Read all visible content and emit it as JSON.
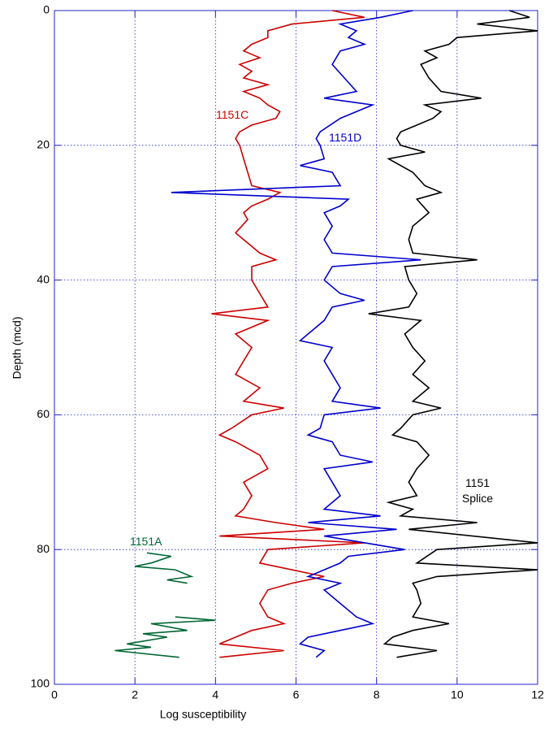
{
  "chart_data": {
    "type": "line",
    "x_label": "Log susceptibility",
    "y_label": "Depth (mcd)",
    "xlim": [
      0,
      12
    ],
    "xticks": [
      0,
      2,
      4,
      6,
      8,
      10,
      12
    ],
    "ylim": [
      0,
      100
    ],
    "yticks": [
      0,
      20,
      40,
      60,
      80,
      100
    ],
    "y_inverted": true,
    "grid": true,
    "series": [
      {
        "name": "1151C",
        "color": "#cc0000",
        "y": [
          0,
          1,
          2,
          3,
          4,
          5,
          6,
          7,
          8,
          9,
          10,
          11,
          12,
          13,
          14,
          15,
          16,
          17,
          18,
          19,
          20,
          22,
          24,
          26,
          27,
          28,
          29,
          30,
          31,
          33,
          34,
          35,
          36,
          37,
          38,
          40,
          42,
          44,
          45,
          46,
          48,
          50,
          52,
          54,
          56,
          58,
          59,
          60,
          62,
          63,
          64,
          66,
          68,
          70,
          72,
          74,
          75,
          76,
          77,
          78,
          79,
          80,
          82,
          84,
          85,
          86,
          88,
          90,
          91,
          92,
          93,
          94,
          95,
          96
        ],
        "x": [
          6.9,
          7.7,
          5.9,
          5.3,
          5.3,
          4.9,
          4.7,
          5.1,
          4.6,
          4.9,
          4.7,
          5.3,
          4.7,
          5.1,
          5.3,
          5.6,
          5.5,
          4.9,
          4.6,
          4.5,
          4.6,
          4.7,
          4.8,
          4.9,
          5.6,
          5.3,
          4.9,
          4.7,
          4.8,
          4.5,
          4.7,
          4.9,
          5.1,
          5.5,
          4.9,
          4.9,
          5.1,
          5.3,
          3.9,
          5.3,
          4.5,
          4.9,
          4.7,
          4.5,
          5.1,
          4.7,
          5.7,
          4.9,
          4.4,
          4.1,
          4.5,
          5.1,
          5.3,
          4.7,
          4.9,
          4.7,
          4.5,
          5.5,
          6.7,
          4.1,
          7.7,
          5.3,
          5.1,
          6.7,
          5.9,
          5.3,
          5.1,
          5.3,
          5.7,
          4.9,
          4.5,
          4.1,
          5.7,
          4.1
        ]
      },
      {
        "name": "1151D",
        "color": "#0000cc",
        "y": [
          0,
          1,
          2,
          3,
          4,
          5,
          6,
          8,
          10,
          12,
          13,
          14,
          16,
          18,
          19,
          20,
          22,
          23,
          24,
          26,
          27,
          28,
          29,
          30,
          32,
          34,
          36,
          37,
          38,
          40,
          42,
          43,
          44,
          46,
          48,
          49,
          50,
          52,
          54,
          56,
          58,
          59,
          60,
          62,
          63,
          64,
          66,
          67,
          68,
          70,
          72,
          74,
          75,
          76,
          77,
          78,
          80,
          81,
          82,
          83,
          84,
          85,
          86,
          88,
          90,
          91,
          92,
          93,
          94,
          95,
          96
        ],
        "x": [
          8.9,
          8.1,
          7.1,
          7.5,
          7.3,
          7.7,
          7.1,
          6.9,
          7.2,
          7.5,
          6.7,
          7.9,
          7.1,
          6.6,
          6.5,
          6.6,
          6.7,
          6.1,
          6.9,
          7.1,
          2.9,
          7.3,
          7.1,
          6.7,
          6.9,
          6.7,
          6.9,
          9.1,
          6.9,
          6.7,
          7.1,
          7.7,
          6.9,
          6.7,
          6.3,
          6.1,
          6.9,
          6.7,
          6.9,
          7.1,
          6.9,
          8.1,
          6.7,
          6.6,
          6.3,
          6.9,
          7.1,
          7.9,
          6.7,
          6.9,
          7.1,
          6.7,
          8.1,
          6.3,
          8.5,
          6.7,
          8.7,
          7.3,
          7.1,
          6.7,
          6.3,
          7.1,
          6.7,
          7.1,
          7.5,
          7.9,
          7.1,
          6.3,
          6.1,
          6.7,
          6.5
        ]
      },
      {
        "name": "1151 Splice",
        "color": "#000000",
        "y": [
          0,
          1,
          2,
          3,
          4,
          5,
          6,
          7,
          8,
          10,
          12,
          13,
          14,
          15,
          16,
          18,
          19,
          20,
          21,
          22,
          24,
          26,
          27,
          28,
          30,
          32,
          34,
          36,
          37,
          38,
          40,
          42,
          44,
          45,
          46,
          48,
          50,
          52,
          54,
          56,
          58,
          59,
          60,
          62,
          63,
          64,
          66,
          68,
          70,
          72,
          73,
          74,
          75,
          76,
          77,
          79,
          80,
          82,
          83,
          84,
          85,
          86,
          88,
          90,
          91,
          92,
          93,
          94,
          95,
          96
        ],
        "x": [
          11.3,
          11.8,
          10.5,
          12,
          10,
          9.8,
          9.2,
          9.5,
          9.1,
          9.3,
          9.6,
          10.6,
          9.2,
          9.6,
          9.4,
          8.6,
          8.5,
          8.6,
          9.2,
          8.3,
          8.9,
          9.2,
          9.6,
          9,
          9.3,
          8.9,
          8.8,
          8.9,
          10.5,
          8.7,
          8.8,
          9,
          8.8,
          7.8,
          9.1,
          8.7,
          8.9,
          9.2,
          8.9,
          9.3,
          8.9,
          9.6,
          8.9,
          8.6,
          8.4,
          9,
          9.3,
          9,
          8.8,
          9,
          8.3,
          8.9,
          8.6,
          10.5,
          8.8,
          12,
          9.5,
          9,
          12,
          9.5,
          8.9,
          9,
          9.1,
          8.9,
          9.8,
          8.9,
          8.4,
          8.2,
          9.5,
          8.5
        ]
      },
      {
        "name": "1151A",
        "color": "#006633",
        "y": [
          80.5,
          81,
          82,
          82.5,
          83,
          84,
          84.5,
          85,
          null,
          90,
          90.5,
          91,
          92,
          92.5,
          93,
          94,
          94.5,
          95,
          96
        ],
        "x": [
          2.3,
          2.9,
          2.4,
          2,
          3,
          3.4,
          2.8,
          3.3,
          null,
          3,
          4,
          2.4,
          3.3,
          2.2,
          2.8,
          1.8,
          2.4,
          1.5,
          3.1
        ]
      }
    ]
  }
}
